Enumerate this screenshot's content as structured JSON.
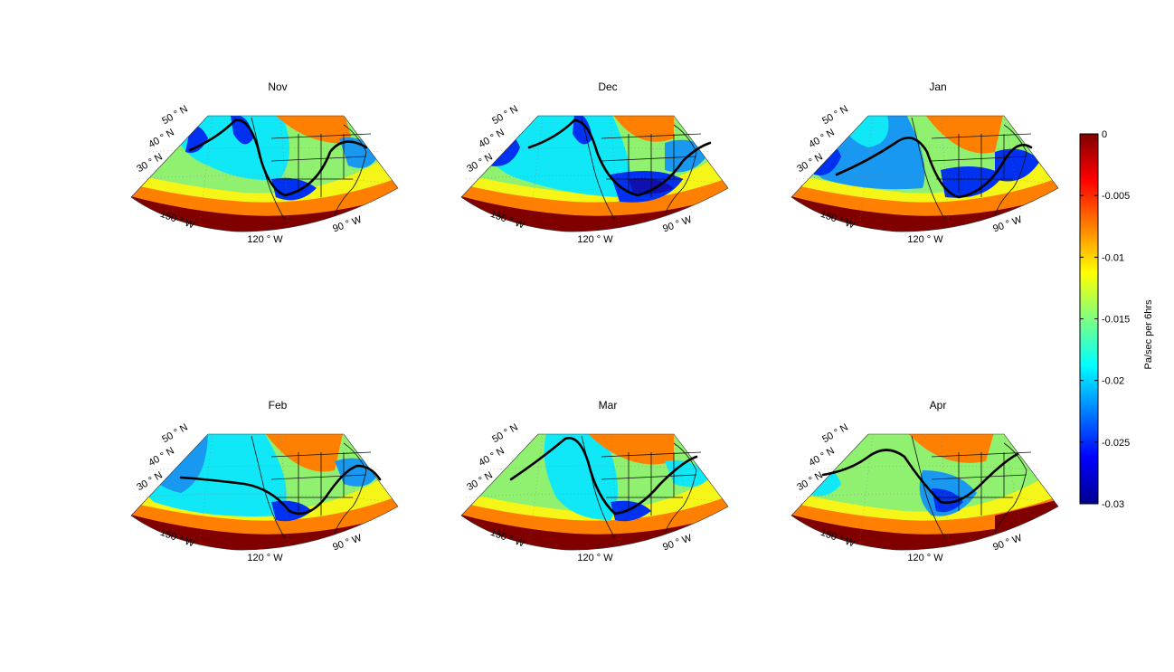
{
  "figure": {
    "panels": [
      {
        "title": "Nov",
        "lat_labels": [
          "50 ° N",
          "40 ° N",
          "30 ° N"
        ],
        "lon_labels": [
          "150 ° W",
          "120 ° W",
          "90 ° W"
        ],
        "trough_track": "jet"
      },
      {
        "title": "Dec",
        "lat_labels": [
          "50 ° N",
          "40 ° N",
          "30 ° N"
        ],
        "lon_labels": [
          "150 ° W",
          "120 ° W",
          "90 ° W"
        ],
        "trough_track": "jet"
      },
      {
        "title": "Jan",
        "lat_labels": [
          "50 ° N",
          "40 ° N",
          "30 ° N"
        ],
        "lon_labels": [
          "150 ° W",
          "120 ° W",
          "90 ° W"
        ],
        "trough_track": "jet"
      },
      {
        "title": "Feb",
        "lat_labels": [
          "50 ° N",
          "40 ° N",
          "30 ° N"
        ],
        "lon_labels": [
          "150 ° W",
          "120 ° W",
          "90 ° W"
        ],
        "trough_track": "jet"
      },
      {
        "title": "Mar",
        "lat_labels": [
          "50 ° N",
          "40 ° N",
          "30 ° N"
        ],
        "lon_labels": [
          "150 ° W",
          "120 ° W",
          "90 ° W"
        ],
        "trough_track": "jet"
      },
      {
        "title": "Apr",
        "lat_labels": [
          "50 ° N",
          "40 ° N",
          "30 ° N"
        ],
        "lon_labels": [
          "150 ° W",
          "120 ° W",
          "90 ° W"
        ],
        "trough_track": "jet"
      }
    ],
    "colorbar": {
      "label": "Pa/sec per 6hrs",
      "ticks": [
        "0",
        "-0.005",
        "-0.01",
        "-0.015",
        "-0.02",
        "-0.025",
        "-0.03"
      ],
      "range": [
        -0.03,
        0
      ],
      "colormap": "jet",
      "colors": [
        "#00008f",
        "#0000ff",
        "#0080ff",
        "#00ffff",
        "#80ff80",
        "#ffff00",
        "#ff8000",
        "#ff0000",
        "#800000"
      ]
    }
  }
}
